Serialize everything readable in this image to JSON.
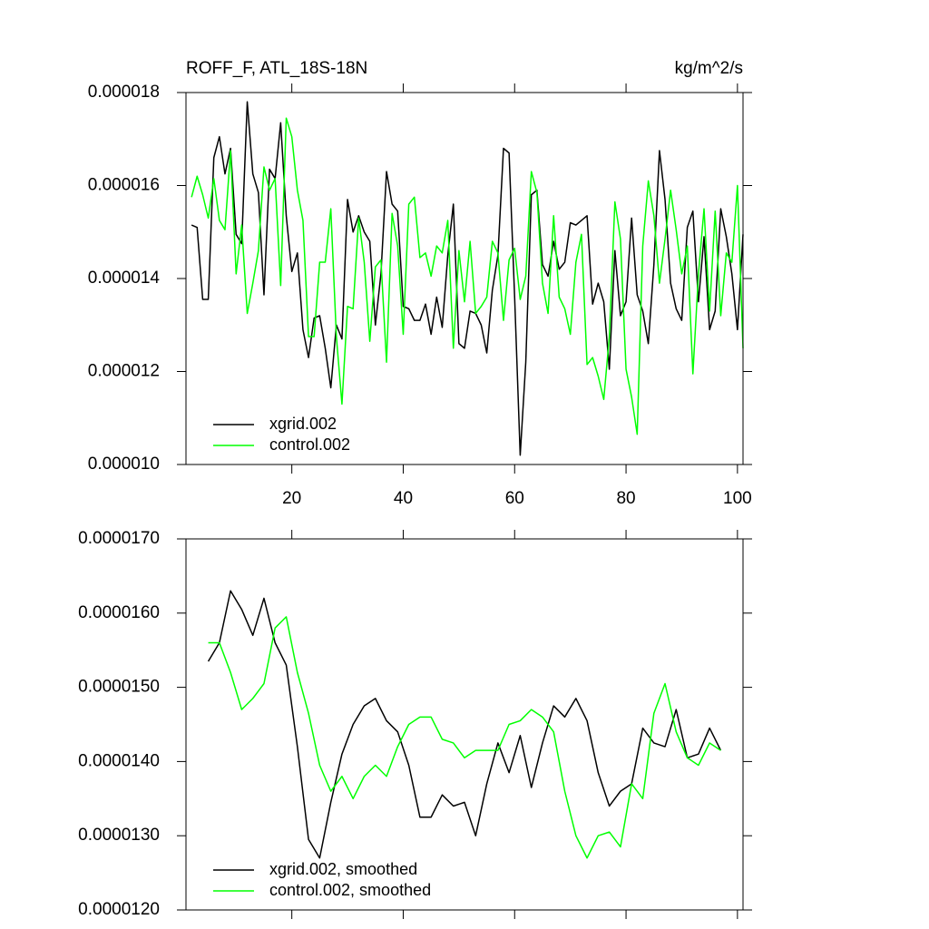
{
  "chart_data": [
    {
      "type": "line",
      "title": "ROFF_F, ATL_18S-18N",
      "units": "kg/m^2/s",
      "x": [
        2,
        3,
        4,
        5,
        6,
        7,
        8,
        9,
        10,
        11,
        12,
        13,
        14,
        15,
        16,
        17,
        18,
        19,
        20,
        21,
        22,
        23,
        24,
        25,
        26,
        27,
        28,
        29,
        30,
        31,
        32,
        33,
        34,
        35,
        36,
        37,
        38,
        39,
        40,
        41,
        42,
        43,
        44,
        45,
        46,
        47,
        48,
        49,
        50,
        51,
        52,
        53,
        54,
        55,
        56,
        57,
        58,
        59,
        60,
        61,
        62,
        63,
        64,
        65,
        66,
        67,
        68,
        69,
        70,
        71,
        72,
        73,
        74,
        75,
        76,
        77,
        78,
        79,
        80,
        81,
        82,
        83,
        84,
        85,
        86,
        87,
        88,
        89,
        90,
        91,
        92,
        93,
        94,
        95,
        96,
        97,
        98,
        99,
        100,
        101
      ],
      "series": [
        {
          "name": "xgrid.002",
          "color": "#000000",
          "values": [
            1.515e-05,
            1.51e-05,
            1.355e-05,
            1.355e-05,
            1.66e-05,
            1.705e-05,
            1.625e-05,
            1.68e-05,
            1.495e-05,
            1.475e-05,
            1.78e-05,
            1.625e-05,
            1.585e-05,
            1.365e-05,
            1.635e-05,
            1.615e-05,
            1.735e-05,
            1.535e-05,
            1.415e-05,
            1.455e-05,
            1.29e-05,
            1.23e-05,
            1.315e-05,
            1.32e-05,
            1.25e-05,
            1.165e-05,
            1.3e-05,
            1.27e-05,
            1.57e-05,
            1.5e-05,
            1.535e-05,
            1.5e-05,
            1.48e-05,
            1.3e-05,
            1.41e-05,
            1.63e-05,
            1.56e-05,
            1.545e-05,
            1.34e-05,
            1.335e-05,
            1.31e-05,
            1.31e-05,
            1.345e-05,
            1.28e-05,
            1.36e-05,
            1.295e-05,
            1.45e-05,
            1.56e-05,
            1.26e-05,
            1.25e-05,
            1.33e-05,
            1.325e-05,
            1.3e-05,
            1.24e-05,
            1.375e-05,
            1.45e-05,
            1.68e-05,
            1.67e-05,
            1.36e-05,
            1.02e-05,
            1.22e-05,
            1.58e-05,
            1.59e-05,
            1.43e-05,
            1.405e-05,
            1.48e-05,
            1.42e-05,
            1.435e-05,
            1.52e-05,
            1.515e-05,
            1.525e-05,
            1.535e-05,
            1.345e-05,
            1.39e-05,
            1.35e-05,
            1.205e-05,
            1.46e-05,
            1.32e-05,
            1.35e-05,
            1.53e-05,
            1.365e-05,
            1.33e-05,
            1.26e-05,
            1.43e-05,
            1.675e-05,
            1.57e-05,
            1.39e-05,
            1.335e-05,
            1.31e-05,
            1.51e-05,
            1.545e-05,
            1.35e-05,
            1.49e-05,
            1.29e-05,
            1.33e-05,
            1.55e-05,
            1.49e-05,
            1.41e-05,
            1.29e-05,
            1.495e-05
          ]
        },
        {
          "name": "control.002",
          "color": "#00ff00",
          "values": [
            1.575e-05,
            1.62e-05,
            1.58e-05,
            1.53e-05,
            1.615e-05,
            1.525e-05,
            1.505e-05,
            1.675e-05,
            1.41e-05,
            1.515e-05,
            1.325e-05,
            1.39e-05,
            1.46e-05,
            1.64e-05,
            1.59e-05,
            1.615e-05,
            1.385e-05,
            1.745e-05,
            1.705e-05,
            1.59e-05,
            1.525e-05,
            1.275e-05,
            1.275e-05,
            1.435e-05,
            1.435e-05,
            1.55e-05,
            1.275e-05,
            1.13e-05,
            1.34e-05,
            1.335e-05,
            1.53e-05,
            1.435e-05,
            1.265e-05,
            1.425e-05,
            1.44e-05,
            1.22e-05,
            1.54e-05,
            1.47e-05,
            1.28e-05,
            1.56e-05,
            1.575e-05,
            1.445e-05,
            1.455e-05,
            1.405e-05,
            1.47e-05,
            1.455e-05,
            1.525e-05,
            1.25e-05,
            1.46e-05,
            1.35e-05,
            1.48e-05,
            1.325e-05,
            1.34e-05,
            1.36e-05,
            1.48e-05,
            1.455e-05,
            1.31e-05,
            1.44e-05,
            1.465e-05,
            1.355e-05,
            1.405e-05,
            1.63e-05,
            1.585e-05,
            1.39e-05,
            1.325e-05,
            1.535e-05,
            1.36e-05,
            1.335e-05,
            1.28e-05,
            1.435e-05,
            1.495e-05,
            1.215e-05,
            1.23e-05,
            1.19e-05,
            1.14e-05,
            1.275e-05,
            1.565e-05,
            1.485e-05,
            1.205e-05,
            1.145e-05,
            1.065e-05,
            1.47e-05,
            1.61e-05,
            1.535e-05,
            1.39e-05,
            1.485e-05,
            1.59e-05,
            1.505e-05,
            1.41e-05,
            1.47e-05,
            1.195e-05,
            1.41e-05,
            1.55e-05,
            1.33e-05,
            1.545e-05,
            1.32e-05,
            1.455e-05,
            1.435e-05,
            1.6e-05,
            1.25e-05
          ]
        }
      ],
      "xlim": [
        1,
        101
      ],
      "xticks": [
        20,
        40,
        60,
        80,
        100
      ],
      "xtick_labels": true,
      "ylim": [
        1e-05,
        1.8e-05
      ],
      "yticks": [
        {
          "value": 1e-05,
          "label": "0.000010"
        },
        {
          "value": 1.2e-05,
          "label": "0.000012"
        },
        {
          "value": 1.4e-05,
          "label": "0.000014"
        },
        {
          "value": 1.6e-05,
          "label": "0.000016"
        },
        {
          "value": 1.8e-05,
          "label": "0.000018"
        }
      ],
      "legend": "lower left"
    },
    {
      "type": "line",
      "x": [
        5,
        7,
        9,
        11,
        13,
        15,
        17,
        19,
        21,
        23,
        25,
        27,
        29,
        31,
        33,
        35,
        37,
        39,
        41,
        43,
        45,
        47,
        49,
        51,
        53,
        55,
        57,
        59,
        61,
        63,
        65,
        67,
        69,
        71,
        73,
        75,
        77,
        79,
        81,
        83,
        85,
        87,
        89,
        91,
        93,
        95,
        97
      ],
      "series": [
        {
          "name": "xgrid.002, smoothed",
          "color": "#000000",
          "values": [
            1.535e-05,
            1.56e-05,
            1.63e-05,
            1.605e-05,
            1.57e-05,
            1.62e-05,
            1.56e-05,
            1.53e-05,
            1.42e-05,
            1.295e-05,
            1.27e-05,
            1.345e-05,
            1.41e-05,
            1.45e-05,
            1.475e-05,
            1.485e-05,
            1.455e-05,
            1.44e-05,
            1.395e-05,
            1.325e-05,
            1.325e-05,
            1.355e-05,
            1.34e-05,
            1.345e-05,
            1.3e-05,
            1.37e-05,
            1.425e-05,
            1.385e-05,
            1.435e-05,
            1.365e-05,
            1.425e-05,
            1.475e-05,
            1.46e-05,
            1.485e-05,
            1.455e-05,
            1.385e-05,
            1.34e-05,
            1.36e-05,
            1.37e-05,
            1.445e-05,
            1.425e-05,
            1.42e-05,
            1.47e-05,
            1.405e-05,
            1.41e-05,
            1.445e-05,
            1.415e-05
          ]
        },
        {
          "name": "control.002, smoothed",
          "color": "#00ff00",
          "values": [
            1.56e-05,
            1.56e-05,
            1.52e-05,
            1.47e-05,
            1.485e-05,
            1.505e-05,
            1.58e-05,
            1.595e-05,
            1.52e-05,
            1.465e-05,
            1.395e-05,
            1.36e-05,
            1.38e-05,
            1.35e-05,
            1.38e-05,
            1.395e-05,
            1.38e-05,
            1.42e-05,
            1.45e-05,
            1.46e-05,
            1.46e-05,
            1.43e-05,
            1.425e-05,
            1.405e-05,
            1.415e-05,
            1.415e-05,
            1.415e-05,
            1.45e-05,
            1.455e-05,
            1.47e-05,
            1.46e-05,
            1.44e-05,
            1.36e-05,
            1.3e-05,
            1.27e-05,
            1.3e-05,
            1.305e-05,
            1.285e-05,
            1.37e-05,
            1.35e-05,
            1.465e-05,
            1.505e-05,
            1.44e-05,
            1.405e-05,
            1.395e-05,
            1.425e-05,
            1.415e-05
          ]
        }
      ],
      "xlim": [
        1,
        101
      ],
      "xticks": [
        20,
        40,
        60,
        80,
        100
      ],
      "xtick_labels": false,
      "ylim": [
        1.2e-05,
        1.7e-05
      ],
      "yticks": [
        {
          "value": 1.2e-05,
          "label": "0.0000120"
        },
        {
          "value": 1.3e-05,
          "label": "0.0000130"
        },
        {
          "value": 1.4e-05,
          "label": "0.0000140"
        },
        {
          "value": 1.5e-05,
          "label": "0.0000150"
        },
        {
          "value": 1.6e-05,
          "label": "0.0000160"
        },
        {
          "value": 1.7e-05,
          "label": "0.0000170"
        }
      ],
      "legend": "lower left"
    }
  ]
}
